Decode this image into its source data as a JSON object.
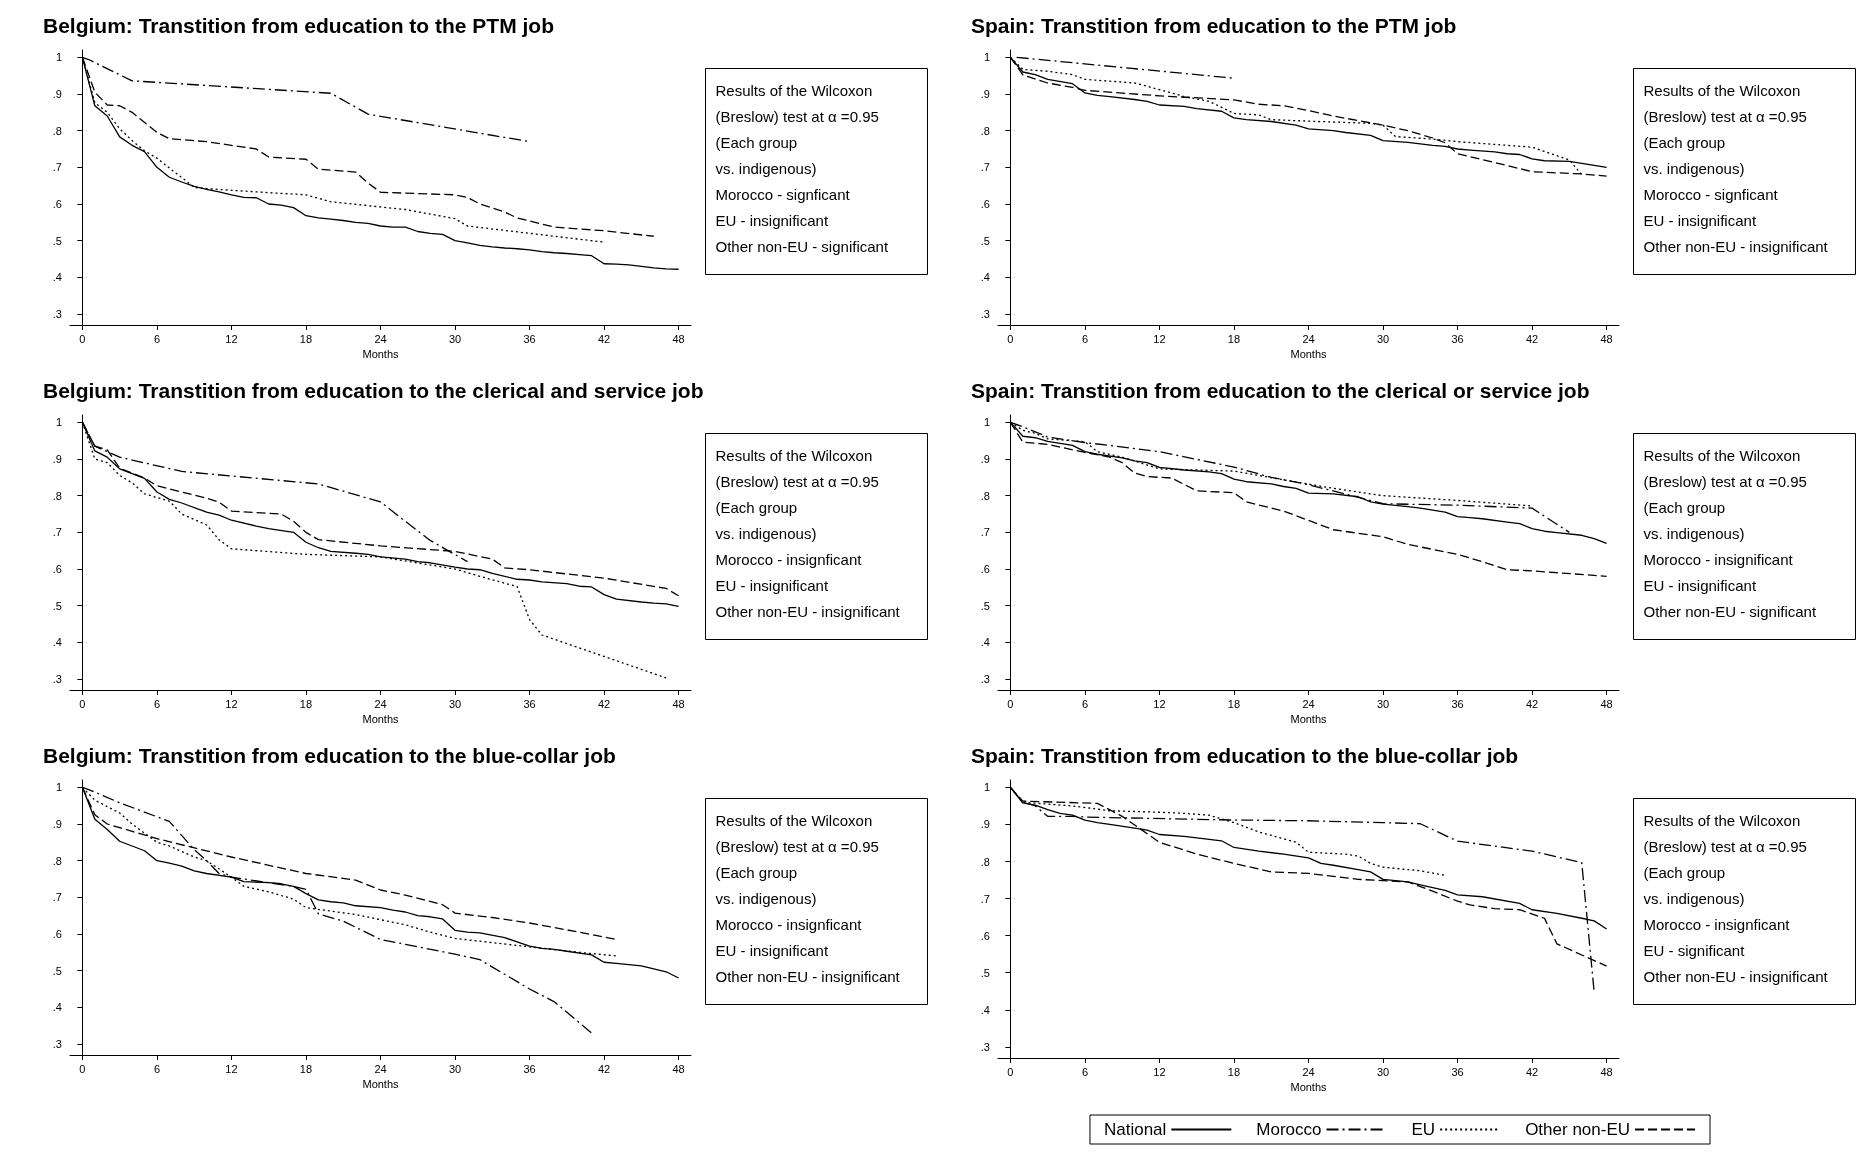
{
  "chart_data": [
    {
      "type": "line",
      "title": "Belgium: Transtition from education to the PTM job",
      "xlabel": "Months",
      "xlim": [
        -1,
        49
      ],
      "xticks": [
        0,
        6,
        12,
        18,
        24,
        30,
        36,
        42,
        48
      ],
      "ylim": [
        0.27,
        1.02
      ],
      "yticks": [
        {
          "value": 0.3,
          "label": ".3"
        },
        {
          "value": 0.4,
          "label": ".4"
        },
        {
          "value": 0.5,
          "label": ".5"
        },
        {
          "value": 0.6,
          "label": ".6"
        },
        {
          "value": 0.7,
          "label": ".7"
        },
        {
          "value": 0.8,
          "label": ".8"
        },
        {
          "value": 0.9,
          "label": ".9"
        },
        {
          "value": 1,
          "label": "1"
        }
      ],
      "legend": false,
      "annotations": [
        "Results of the Wilcoxon",
        "(Breslow) test at α =0.95",
        "(Each group",
        "vs. indigenous)",
        "Morocco - signficant",
        "EU - insignificant",
        "Other non-EU - significant"
      ],
      "series": [
        {
          "color": "#000000",
          "line_style": "solid",
          "x": [
            0,
            1,
            2,
            3,
            4,
            5,
            6,
            7,
            8,
            9,
            10,
            11,
            12,
            13,
            14,
            15,
            16,
            17,
            18,
            19,
            20,
            21,
            22,
            23,
            24,
            25,
            26,
            27,
            28,
            29,
            30,
            31,
            32,
            33,
            34,
            35,
            36,
            37,
            38,
            39,
            40,
            41,
            42,
            43,
            44,
            45,
            46,
            47,
            48
          ],
          "values": [
            1,
            0.868,
            0.84,
            0.783,
            0.76,
            0.743,
            0.7,
            0.673,
            0.66,
            0.648,
            0.64,
            0.633,
            0.625,
            0.618,
            0.617,
            0.6,
            0.597,
            0.59,
            0.568,
            0.562,
            0.559,
            0.555,
            0.55,
            0.547,
            0.54,
            0.537,
            0.537,
            0.525,
            0.52,
            0.517,
            0.5,
            0.494,
            0.487,
            0.483,
            0.48,
            0.478,
            0.475,
            0.47,
            0.467,
            0.465,
            0.462,
            0.459,
            0.437,
            0.436,
            0.434,
            0.43,
            0.426,
            0.423,
            0.422
          ]
        },
        {
          "color": "#000000",
          "line_style": "dashdot",
          "x": [
            0,
            0.5,
            4,
            20,
            23,
            36
          ],
          "values": [
            1,
            0.994,
            0.936,
            0.902,
            0.845,
            0.77
          ]
        },
        {
          "color": "#000000",
          "line_style": "dotted",
          "x": [
            0,
            1,
            2,
            3,
            4,
            5,
            6,
            7,
            8,
            9,
            10,
            14,
            18,
            20,
            24,
            26,
            30,
            31,
            36,
            42
          ],
          "values": [
            1,
            0.876,
            0.85,
            0.805,
            0.773,
            0.745,
            0.725,
            0.698,
            0.672,
            0.645,
            0.642,
            0.633,
            0.625,
            0.606,
            0.592,
            0.585,
            0.56,
            0.54,
            0.52,
            0.496
          ]
        },
        {
          "color": "#000000",
          "line_style": "dashed",
          "x": [
            0,
            1,
            2,
            3,
            4,
            6,
            7,
            10,
            14,
            15,
            18,
            19,
            22,
            23,
            24,
            30,
            31,
            32,
            34,
            35,
            38,
            42,
            46
          ],
          "values": [
            1,
            0.905,
            0.87,
            0.868,
            0.85,
            0.795,
            0.778,
            0.77,
            0.75,
            0.728,
            0.722,
            0.695,
            0.687,
            0.657,
            0.632,
            0.625,
            0.618,
            0.6,
            0.578,
            0.562,
            0.537,
            0.527,
            0.512
          ]
        }
      ]
    },
    {
      "type": "line",
      "title": "Spain: Transtition from education to the PTM job",
      "xlabel": "Months",
      "xlim": [
        -1,
        49
      ],
      "xticks": [
        0,
        6,
        12,
        18,
        24,
        30,
        36,
        42,
        48
      ],
      "ylim": [
        0.27,
        1.02
      ],
      "yticks": [
        {
          "value": 0.3,
          "label": ".3"
        },
        {
          "value": 0.4,
          "label": ".4"
        },
        {
          "value": 0.5,
          "label": ".5"
        },
        {
          "value": 0.6,
          "label": ".6"
        },
        {
          "value": 0.7,
          "label": ".7"
        },
        {
          "value": 0.8,
          "label": ".8"
        },
        {
          "value": 0.9,
          "label": ".9"
        },
        {
          "value": 1,
          "label": "1"
        }
      ],
      "legend": false,
      "annotations": [
        "Results of the Wilcoxon",
        "(Breslow) test at α =0.95",
        "(Each group",
        "vs. indigenous)",
        "Morocco - signficant",
        "EU - insignificant",
        "Other non-EU - insignificant"
      ],
      "series": [
        {
          "color": "#000000",
          "line_style": "solid",
          "x": [
            0,
            1,
            2,
            3,
            5,
            6,
            7,
            8,
            10,
            11,
            12,
            14,
            15,
            17,
            18,
            19,
            21,
            23,
            24,
            26,
            27,
            29,
            30,
            32,
            34,
            35,
            36,
            37,
            39,
            40,
            41,
            42,
            43,
            45,
            48
          ],
          "values": [
            1,
            0.96,
            0.953,
            0.94,
            0.928,
            0.903,
            0.896,
            0.893,
            0.885,
            0.88,
            0.87,
            0.866,
            0.86,
            0.853,
            0.835,
            0.83,
            0.825,
            0.815,
            0.805,
            0.8,
            0.795,
            0.787,
            0.773,
            0.768,
            0.76,
            0.757,
            0.75,
            0.747,
            0.742,
            0.737,
            0.735,
            0.723,
            0.718,
            0.716,
            0.7
          ]
        },
        {
          "color": "#000000",
          "line_style": "dashdot",
          "x": [
            0.5,
            18
          ],
          "values": [
            1,
            0.943
          ]
        },
        {
          "color": "#000000",
          "line_style": "dotted",
          "x": [
            0,
            1,
            3,
            5,
            6,
            8,
            10,
            12,
            14,
            16,
            18,
            20,
            21,
            24,
            29,
            30,
            31,
            34,
            36,
            42,
            45,
            46
          ],
          "values": [
            1,
            0.967,
            0.962,
            0.953,
            0.94,
            0.935,
            0.93,
            0.912,
            0.893,
            0.88,
            0.847,
            0.843,
            0.83,
            0.826,
            0.82,
            0.815,
            0.784,
            0.777,
            0.77,
            0.755,
            0.72,
            0.68
          ]
        },
        {
          "color": "#000000",
          "line_style": "dashed",
          "x": [
            0,
            1,
            3,
            5,
            6,
            12,
            18,
            20,
            22,
            24,
            26,
            30,
            32,
            34,
            35,
            36,
            40,
            42,
            46,
            48
          ],
          "values": [
            1,
            0.952,
            0.93,
            0.918,
            0.91,
            0.895,
            0.884,
            0.872,
            0.868,
            0.855,
            0.84,
            0.815,
            0.8,
            0.78,
            0.767,
            0.737,
            0.705,
            0.688,
            0.682,
            0.676
          ]
        }
      ]
    },
    {
      "type": "line",
      "title": "Belgium: Transtition from education to the clerical and service job",
      "xlabel": "Months",
      "xlim": [
        -1,
        49
      ],
      "xticks": [
        0,
        6,
        12,
        18,
        24,
        30,
        36,
        42,
        48
      ],
      "ylim": [
        0.27,
        1.02
      ],
      "yticks": [
        {
          "value": 0.3,
          "label": ".3"
        },
        {
          "value": 0.4,
          "label": ".4"
        },
        {
          "value": 0.5,
          "label": ".5"
        },
        {
          "value": 0.6,
          "label": ".6"
        },
        {
          "value": 0.7,
          "label": ".7"
        },
        {
          "value": 0.8,
          "label": ".8"
        },
        {
          "value": 0.9,
          "label": ".9"
        },
        {
          "value": 1,
          "label": "1"
        }
      ],
      "legend": false,
      "annotations": [
        "Results of the Wilcoxon",
        "(Breslow) test at α =0.95",
        "(Each group",
        "vs. indigenous)",
        "Morocco - insignficant",
        "EU - insignificant",
        "Other non-EU - insignificant"
      ],
      "series": [
        {
          "color": "#000000",
          "line_style": "solid",
          "x": [
            0,
            1,
            2,
            3,
            5,
            6,
            7,
            8,
            10,
            11,
            12,
            14,
            15,
            17,
            18,
            19,
            20,
            22,
            23,
            24,
            26,
            27,
            28,
            30,
            31,
            32,
            33,
            35,
            36,
            37,
            39,
            40,
            41,
            42,
            43,
            45,
            46,
            47,
            48
          ],
          "values": [
            1,
            0.922,
            0.905,
            0.873,
            0.847,
            0.81,
            0.79,
            0.78,
            0.755,
            0.747,
            0.733,
            0.717,
            0.71,
            0.7,
            0.673,
            0.658,
            0.648,
            0.643,
            0.64,
            0.633,
            0.627,
            0.62,
            0.617,
            0.605,
            0.6,
            0.598,
            0.588,
            0.572,
            0.57,
            0.565,
            0.56,
            0.553,
            0.551,
            0.53,
            0.518,
            0.51,
            0.507,
            0.505,
            0.498
          ]
        },
        {
          "color": "#000000",
          "line_style": "dashdot",
          "x": [
            0,
            1,
            3,
            8,
            19,
            24,
            26,
            28,
            31
          ],
          "values": [
            1,
            0.935,
            0.905,
            0.866,
            0.832,
            0.783,
            0.73,
            0.678,
            0.62
          ]
        },
        {
          "color": "#000000",
          "line_style": "dotted",
          "x": [
            0,
            1,
            2,
            3,
            4,
            5,
            7,
            8,
            10,
            11,
            12,
            18,
            24,
            30,
            32,
            35,
            36,
            37,
            47
          ],
          "values": [
            1,
            0.9,
            0.89,
            0.855,
            0.835,
            0.805,
            0.785,
            0.75,
            0.72,
            0.68,
            0.655,
            0.64,
            0.633,
            0.6,
            0.58,
            0.552,
            0.462,
            0.42,
            0.303
          ]
        },
        {
          "color": "#000000",
          "line_style": "dashed",
          "x": [
            0,
            1,
            2,
            3,
            5,
            6,
            8,
            10,
            11,
            12,
            16,
            17,
            18,
            19,
            24,
            30,
            33,
            34,
            36,
            42,
            47,
            48
          ],
          "values": [
            1,
            0.935,
            0.925,
            0.875,
            0.848,
            0.827,
            0.81,
            0.793,
            0.782,
            0.758,
            0.75,
            0.73,
            0.7,
            0.68,
            0.663,
            0.648,
            0.627,
            0.603,
            0.598,
            0.575,
            0.547,
            0.527
          ]
        }
      ]
    },
    {
      "type": "line",
      "title": "Spain: Transtition from education to the clerical or service job",
      "xlabel": "Months",
      "xlim": [
        -1,
        49
      ],
      "xticks": [
        0,
        6,
        12,
        18,
        24,
        30,
        36,
        42,
        48
      ],
      "ylim": [
        0.27,
        1.02
      ],
      "yticks": [
        {
          "value": 0.3,
          "label": ".3"
        },
        {
          "value": 0.4,
          "label": ".4"
        },
        {
          "value": 0.5,
          "label": ".5"
        },
        {
          "value": 0.6,
          "label": ".6"
        },
        {
          "value": 0.7,
          "label": ".7"
        },
        {
          "value": 0.8,
          "label": ".8"
        },
        {
          "value": 0.9,
          "label": ".9"
        },
        {
          "value": 1,
          "label": "1"
        }
      ],
      "legend": false,
      "annotations": [
        "Results of the Wilcoxon",
        "(Breslow) test at α =0.95",
        "(Each group",
        "vs. indigenous)",
        "Morocco - insignificant",
        "EU - insignificant",
        "Other non-EU - significant"
      ],
      "series": [
        {
          "color": "#000000",
          "line_style": "solid",
          "x": [
            0,
            1,
            2,
            3,
            5,
            6,
            7,
            9,
            10,
            11,
            12,
            14,
            16,
            17,
            18,
            19,
            21,
            22,
            23,
            24,
            26,
            28,
            29,
            30,
            32,
            33,
            35,
            36,
            37,
            38,
            40,
            41,
            42,
            43,
            44,
            46,
            47,
            48
          ],
          "values": [
            1,
            0.962,
            0.958,
            0.948,
            0.937,
            0.92,
            0.913,
            0.903,
            0.895,
            0.89,
            0.877,
            0.87,
            0.865,
            0.86,
            0.845,
            0.838,
            0.832,
            0.825,
            0.82,
            0.807,
            0.805,
            0.797,
            0.783,
            0.777,
            0.77,
            0.766,
            0.755,
            0.743,
            0.74,
            0.737,
            0.728,
            0.724,
            0.71,
            0.703,
            0.699,
            0.692,
            0.683,
            0.67
          ]
        },
        {
          "color": "#000000",
          "line_style": "dashdot",
          "x": [
            0,
            1,
            3,
            6,
            12,
            18,
            21,
            24,
            30,
            36,
            42,
            45
          ],
          "values": [
            1,
            0.988,
            0.96,
            0.945,
            0.92,
            0.878,
            0.85,
            0.83,
            0.778,
            0.774,
            0.766,
            0.7
          ]
        },
        {
          "color": "#000000",
          "line_style": "dotted",
          "x": [
            0,
            1,
            2,
            3,
            6,
            7,
            9,
            12,
            18,
            22,
            26,
            30,
            36,
            42
          ],
          "values": [
            1,
            0.978,
            0.97,
            0.955,
            0.947,
            0.92,
            0.905,
            0.873,
            0.867,
            0.843,
            0.82,
            0.8,
            0.787,
            0.772
          ]
        },
        {
          "color": "#000000",
          "line_style": "dashed",
          "x": [
            0,
            1,
            3,
            6,
            8,
            9,
            10,
            11,
            13,
            15,
            18,
            19,
            22,
            26,
            30,
            32,
            36,
            38,
            40,
            42,
            48
          ],
          "values": [
            1,
            0.946,
            0.94,
            0.918,
            0.905,
            0.89,
            0.862,
            0.852,
            0.848,
            0.813,
            0.808,
            0.783,
            0.758,
            0.707,
            0.688,
            0.667,
            0.64,
            0.62,
            0.598,
            0.595,
            0.58
          ]
        }
      ]
    },
    {
      "type": "line",
      "title": "Belgium: Transtition from education to the blue-collar job",
      "xlabel": "Months",
      "xlim": [
        -1,
        49
      ],
      "xticks": [
        0,
        6,
        12,
        18,
        24,
        30,
        36,
        42,
        48
      ],
      "ylim": [
        0.27,
        1.02
      ],
      "yticks": [
        {
          "value": 0.3,
          "label": ".3"
        },
        {
          "value": 0.4,
          "label": ".4"
        },
        {
          "value": 0.5,
          "label": ".5"
        },
        {
          "value": 0.6,
          "label": ".6"
        },
        {
          "value": 0.7,
          "label": ".7"
        },
        {
          "value": 0.8,
          "label": ".8"
        },
        {
          "value": 0.9,
          "label": ".9"
        },
        {
          "value": 1,
          "label": "1"
        }
      ],
      "legend": false,
      "annotations": [
        "Results of the Wilcoxon",
        "(Breslow) test at α =0.95",
        "(Each group",
        "vs. indigenous)",
        "Morocco - insignficant",
        "EU - insignificant",
        "Other non-EU - insignificant"
      ],
      "series": [
        {
          "color": "#000000",
          "line_style": "solid",
          "x": [
            0,
            1,
            2,
            3,
            4,
            5,
            6,
            7,
            8,
            9,
            10,
            12,
            13,
            15,
            16,
            17,
            18,
            19,
            20,
            21,
            22,
            24,
            25,
            26,
            27,
            28,
            29,
            30,
            31,
            32,
            34,
            36,
            37,
            38,
            39,
            41,
            42,
            43,
            45,
            47,
            48
          ],
          "values": [
            1,
            0.913,
            0.885,
            0.853,
            0.84,
            0.827,
            0.8,
            0.793,
            0.785,
            0.772,
            0.765,
            0.755,
            0.743,
            0.74,
            0.737,
            0.73,
            0.71,
            0.693,
            0.688,
            0.685,
            0.677,
            0.672,
            0.665,
            0.66,
            0.65,
            0.647,
            0.641,
            0.61,
            0.605,
            0.603,
            0.59,
            0.567,
            0.561,
            0.558,
            0.553,
            0.543,
            0.523,
            0.52,
            0.513,
            0.497,
            0.48
          ]
        },
        {
          "color": "#000000",
          "line_style": "dashdot",
          "x": [
            0,
            0.5,
            3,
            7,
            9,
            10,
            11,
            12,
            17,
            18,
            19,
            21,
            24,
            26,
            30,
            32,
            36,
            38,
            41
          ],
          "values": [
            1,
            0.994,
            0.958,
            0.907,
            0.83,
            0.8,
            0.765,
            0.755,
            0.73,
            0.722,
            0.655,
            0.635,
            0.585,
            0.572,
            0.545,
            0.53,
            0.45,
            0.415,
            0.33
          ]
        },
        {
          "color": "#000000",
          "line_style": "dotted",
          "x": [
            0,
            1,
            3,
            4,
            6,
            7,
            9,
            10,
            12,
            13,
            15,
            17,
            18,
            22,
            26,
            28,
            30,
            36,
            40,
            43
          ],
          "values": [
            1,
            0.965,
            0.93,
            0.9,
            0.85,
            0.84,
            0.81,
            0.8,
            0.755,
            0.73,
            0.715,
            0.695,
            0.672,
            0.653,
            0.625,
            0.605,
            0.588,
            0.565,
            0.55,
            0.54
          ]
        },
        {
          "color": "#000000",
          "line_style": "dashed",
          "x": [
            0,
            1,
            2,
            3,
            6,
            12,
            18,
            22,
            24,
            26,
            29,
            30,
            33,
            36,
            40,
            43
          ],
          "values": [
            1,
            0.925,
            0.9,
            0.89,
            0.86,
            0.81,
            0.765,
            0.747,
            0.72,
            0.706,
            0.68,
            0.657,
            0.645,
            0.63,
            0.605,
            0.585
          ]
        }
      ]
    },
    {
      "type": "line",
      "title": "Spain: Transtition from education to the blue-collar job",
      "xlabel": "Months",
      "xlim": [
        -1,
        49
      ],
      "xticks": [
        0,
        6,
        12,
        18,
        24,
        30,
        36,
        42,
        48
      ],
      "ylim": [
        0.27,
        1.02
      ],
      "yticks": [
        {
          "value": 0.3,
          "label": ".3"
        },
        {
          "value": 0.4,
          "label": ".4"
        },
        {
          "value": 0.5,
          "label": ".5"
        },
        {
          "value": 0.6,
          "label": ".6"
        },
        {
          "value": 0.7,
          "label": ".7"
        },
        {
          "value": 0.8,
          "label": ".8"
        },
        {
          "value": 0.9,
          "label": ".9"
        },
        {
          "value": 1,
          "label": "1"
        }
      ],
      "legend": "bottom",
      "annotations": [
        "Results of the Wilcoxon",
        "(Breslow) test at α =0.95",
        "(Each group",
        "vs. indigenous)",
        "Morocco - insignficant",
        "EU - significant",
        "Other non-EU - insignificant"
      ],
      "series": [
        {
          "name": "National",
          "color": "#000000",
          "line_style": "solid",
          "x": [
            0,
            1,
            2,
            3,
            4,
            5,
            6,
            7,
            8,
            10,
            11,
            12,
            14,
            16,
            17,
            18,
            20,
            22,
            24,
            25,
            26,
            28,
            29,
            30,
            32,
            33,
            35,
            36,
            38,
            41,
            42,
            44,
            46,
            47,
            48
          ],
          "values": [
            1,
            0.958,
            0.952,
            0.94,
            0.93,
            0.925,
            0.912,
            0.905,
            0.9,
            0.89,
            0.885,
            0.873,
            0.868,
            0.86,
            0.856,
            0.838,
            0.828,
            0.82,
            0.81,
            0.795,
            0.79,
            0.778,
            0.772,
            0.752,
            0.745,
            0.737,
            0.722,
            0.71,
            0.705,
            0.687,
            0.67,
            0.66,
            0.647,
            0.64,
            0.618
          ]
        },
        {
          "name": "Morocco",
          "color": "#000000",
          "line_style": "dashdot",
          "x": [
            0,
            1,
            2,
            3,
            5,
            6,
            18,
            24,
            30,
            33,
            36,
            42,
            46,
            47
          ],
          "values": [
            1,
            0.96,
            0.95,
            0.922,
            0.922,
            0.92,
            0.912,
            0.91,
            0.905,
            0.902,
            0.855,
            0.828,
            0.797,
            0.448
          ]
        },
        {
          "name": "EU",
          "color": "#000000",
          "line_style": "dotted",
          "x": [
            0,
            1,
            5,
            8,
            12,
            14,
            16,
            18,
            20,
            23,
            24,
            27,
            28,
            29,
            30,
            33,
            35
          ],
          "values": [
            1,
            0.96,
            0.95,
            0.937,
            0.933,
            0.93,
            0.925,
            0.905,
            0.88,
            0.852,
            0.825,
            0.82,
            0.815,
            0.795,
            0.785,
            0.775,
            0.763
          ]
        },
        {
          "name": "Other non-EU",
          "color": "#000000",
          "line_style": "dashed",
          "x": [
            0,
            1,
            7,
            9,
            12,
            15,
            18,
            21,
            24,
            28,
            32,
            34,
            36,
            37,
            39,
            41,
            43,
            44,
            48
          ],
          "values": [
            1,
            0.963,
            0.957,
            0.922,
            0.852,
            0.82,
            0.795,
            0.772,
            0.768,
            0.752,
            0.745,
            0.72,
            0.693,
            0.683,
            0.673,
            0.67,
            0.647,
            0.578,
            0.518
          ]
        }
      ]
    }
  ]
}
